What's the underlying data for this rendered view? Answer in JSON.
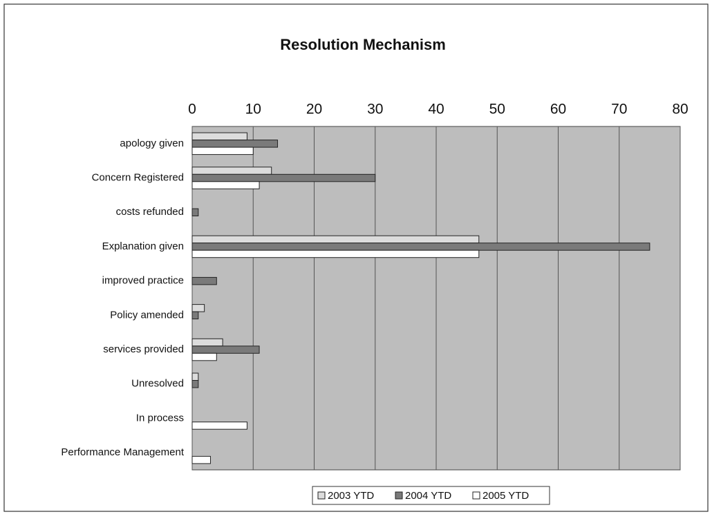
{
  "chart_data": {
    "type": "barh",
    "title": "Resolution Mechanism",
    "categories": [
      "apology given",
      "Concern Registered",
      "costs refunded",
      "Explanation given",
      "improved practice",
      "Policy amended",
      "services provided",
      "Unresolved",
      "In process",
      "Performance Management"
    ],
    "series": [
      {
        "name": "2003 YTD",
        "color": "#dcdcdc",
        "values": [
          9,
          13,
          0,
          47,
          0,
          2,
          5,
          1,
          0,
          0
        ]
      },
      {
        "name": "2004 YTD",
        "color": "#7a7a7a",
        "values": [
          14,
          30,
          1,
          75,
          4,
          1,
          11,
          1,
          0,
          0
        ]
      },
      {
        "name": "2005 YTD",
        "color": "#ffffff",
        "values": [
          10,
          11,
          0,
          47,
          0,
          0,
          4,
          0,
          9,
          3
        ]
      }
    ],
    "xlim": [
      0,
      80
    ],
    "xticks": [
      0,
      10,
      20,
      30,
      40,
      50,
      60,
      70,
      80
    ],
    "x_axis_side": "top",
    "grid": true,
    "legend": "bottom",
    "plot_background": "#bdbdbd"
  }
}
